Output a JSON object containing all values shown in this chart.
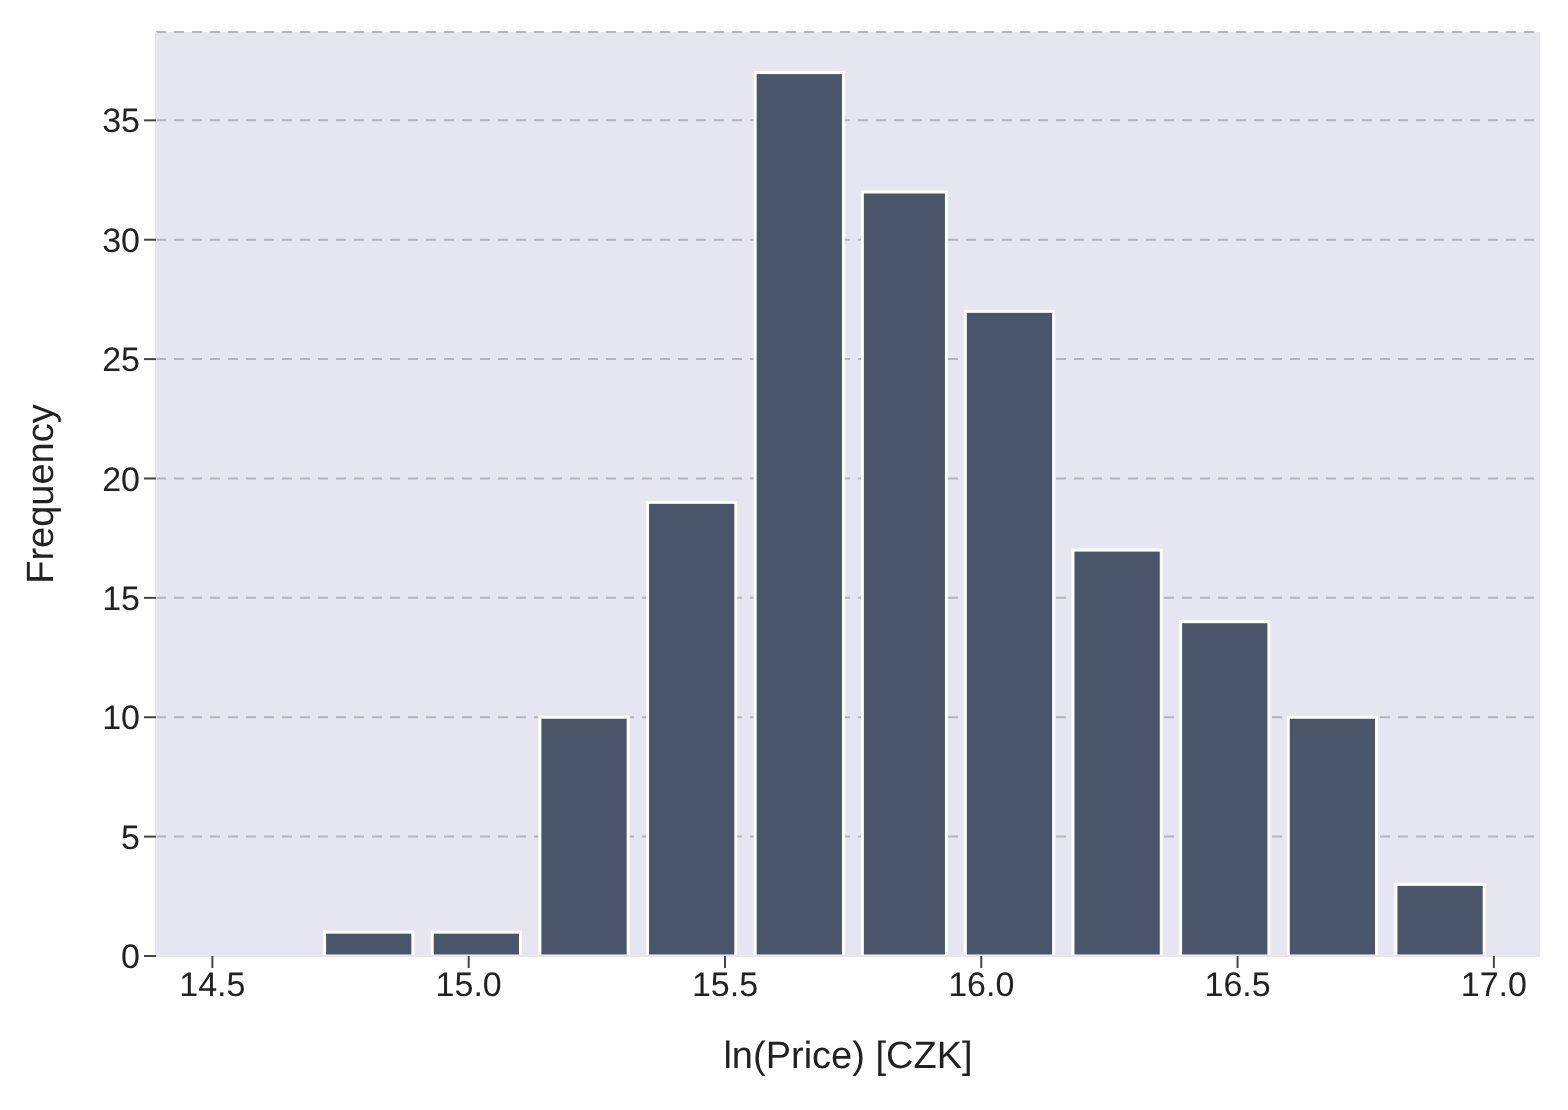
{
  "chart_data": {
    "type": "histogram",
    "xlabel": "ln(Price) [CZK]",
    "ylabel": "Frequency",
    "bins": [
      14.7,
      14.91,
      15.12,
      15.33,
      15.54,
      15.75,
      15.95,
      16.16,
      16.37,
      16.58,
      16.79,
      17.0
    ],
    "values": [
      1,
      1,
      10,
      19,
      37,
      32,
      27,
      17,
      14,
      10,
      3
    ],
    "color": "#4b556a",
    "xlim": [
      14.39,
      17.09
    ],
    "xticks": [
      {
        "value": 14.5,
        "label": "14.5"
      },
      {
        "value": 15,
        "label": "15.0"
      },
      {
        "value": 15.5,
        "label": "15.5"
      },
      {
        "value": 16,
        "label": "16.0"
      },
      {
        "value": 16.5,
        "label": "16.5"
      },
      {
        "value": 17,
        "label": "17.0"
      }
    ],
    "ylim": [
      0,
      38.7
    ],
    "yticks": [
      0,
      5,
      10,
      15,
      20,
      25,
      30,
      35
    ],
    "grid": "y",
    "legend": false
  }
}
